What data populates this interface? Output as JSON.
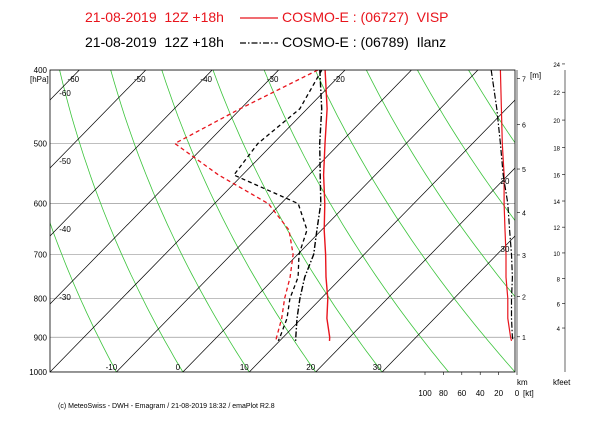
{
  "chart_data": {
    "type": "emagram",
    "stations": [
      {
        "run": "21-08-2019  12Z +18h",
        "name": "COSMO-E : (06727)  VISP",
        "color": "#e8141c",
        "line_style": "solid",
        "temperature": [
          -23.0,
          -17.0,
          -12.2,
          -7.8,
          -3.4,
          0.4,
          4.2,
          7.6,
          11.0,
          13.8,
          17.0,
          17.5
        ],
        "dewpoint": [
          -24.1,
          -30.1,
          -34.8,
          -23.6,
          -11.9,
          -4.9,
          -0.7,
          2.2,
          4.5,
          7.0,
          9.0,
          9.4
        ],
        "wind_speed": [
          18,
          17,
          16,
          14,
          14,
          13,
          12,
          12,
          10,
          10,
          7,
          6
        ]
      },
      {
        "run": "21-08-2019  12Z +18h",
        "name": "COSMO-E : (06789)  Ilanz",
        "color": "#000000",
        "line_style": "dashdot",
        "temperature": [
          -23.8,
          -17.8,
          -13.0,
          -8.3,
          -4.0,
          -0.7,
          2.4,
          4.4,
          6.8,
          9.3,
          11.9,
          12.4
        ],
        "dewpoint": [
          -23.5,
          -21.1,
          -22.3,
          -21.3,
          -7.4,
          -2.2,
          0.2,
          3.4,
          5.3,
          7.8,
          9.5,
          9.8
        ],
        "wind_speed": [
          28,
          22,
          18,
          15,
          10,
          8,
          6,
          5,
          6,
          6,
          5,
          4
        ]
      }
    ],
    "pressure": [
      400,
      450,
      500,
      550,
      600,
      650,
      700,
      750,
      800,
      850,
      900,
      910
    ],
    "ylabel": "[hPa]",
    "ylim": [
      1000,
      400
    ],
    "yticks": [
      400,
      500,
      600,
      700,
      800,
      900,
      1000
    ],
    "ylog": true,
    "xlim": [
      -20,
      50
    ],
    "xticks": [
      -60,
      -50,
      -40,
      -30,
      -20,
      -10,
      0,
      10,
      20,
      30
    ],
    "dry_adiabats": [
      -20,
      -10,
      0,
      10,
      20,
      30,
      40,
      50,
      60,
      70,
      80,
      90
    ],
    "height_label": "[m]",
    "km_label": "km",
    "km_ticks": [
      1,
      2,
      3,
      4,
      5,
      6,
      7
    ],
    "kfeet_label": "kfeet",
    "kfeet_ticks": [
      4,
      6,
      8,
      10,
      12,
      14,
      16,
      18,
      20,
      22,
      24
    ],
    "wind_label": "[kt]",
    "wind_xlim": [
      100,
      0
    ],
    "wind_ticks": [
      100,
      80,
      60,
      40,
      20,
      0
    ],
    "footer": "(c) MeteoSwiss - DWH - Emagram / 21-08-2019 18:32 / emaPlot R2.8"
  }
}
